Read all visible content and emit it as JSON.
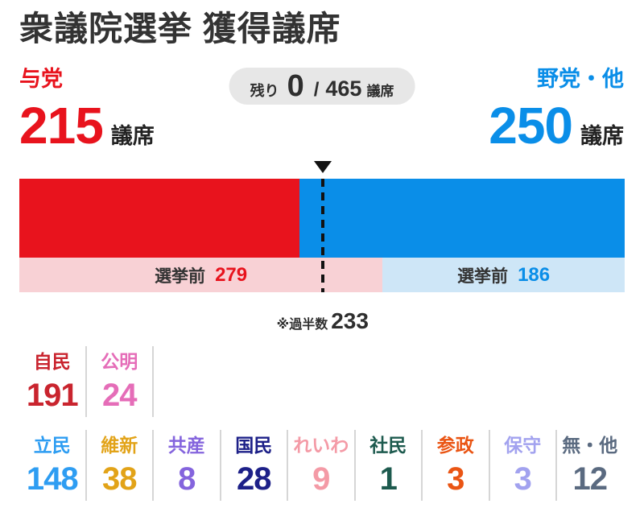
{
  "title": "衆議院選挙 獲得議席",
  "header": {
    "seats_unit": "議席",
    "remaining": {
      "prefix": "残り",
      "value": "0",
      "separator": "/",
      "total": "465",
      "unit": "議席"
    }
  },
  "chart_data": {
    "type": "bar",
    "title": "衆議院選挙 獲得議席",
    "total_seats": 465,
    "majority": 233,
    "majority_note_label": "※過半数",
    "majority_note_value": "233",
    "pre_election_label": "選挙前",
    "categories": [
      "与党",
      "野党・他"
    ],
    "series": [
      {
        "name": "与党",
        "seats": 215,
        "pre_election_seats": 279,
        "color": "#e8131d",
        "pre_color": "#f8d1d5"
      },
      {
        "name": "野党・他",
        "seats": 250,
        "pre_election_seats": 186,
        "color": "#0a8ee8",
        "pre_color": "#cee6f7"
      }
    ]
  },
  "parties_row1": [
    {
      "name": "自民",
      "seats": "191",
      "color": "#c9242e"
    },
    {
      "name": "公明",
      "seats": "24",
      "color": "#e56db8"
    }
  ],
  "parties_row2": [
    {
      "name": "立民",
      "seats": "148",
      "color": "#2e9df2"
    },
    {
      "name": "維新",
      "seats": "38",
      "color": "#e2a318"
    },
    {
      "name": "共産",
      "seats": "8",
      "color": "#8464dd"
    },
    {
      "name": "国民",
      "seats": "28",
      "color": "#1d2088"
    },
    {
      "name": "れいわ",
      "seats": "9",
      "color": "#f49aa6"
    },
    {
      "name": "社民",
      "seats": "1",
      "color": "#1d5a4e"
    },
    {
      "name": "参政",
      "seats": "3",
      "color": "#ea5514"
    },
    {
      "name": "保守",
      "seats": "3",
      "color": "#a2a2ef"
    },
    {
      "name": "無・他",
      "seats": "12",
      "color": "#5a6a80"
    }
  ]
}
